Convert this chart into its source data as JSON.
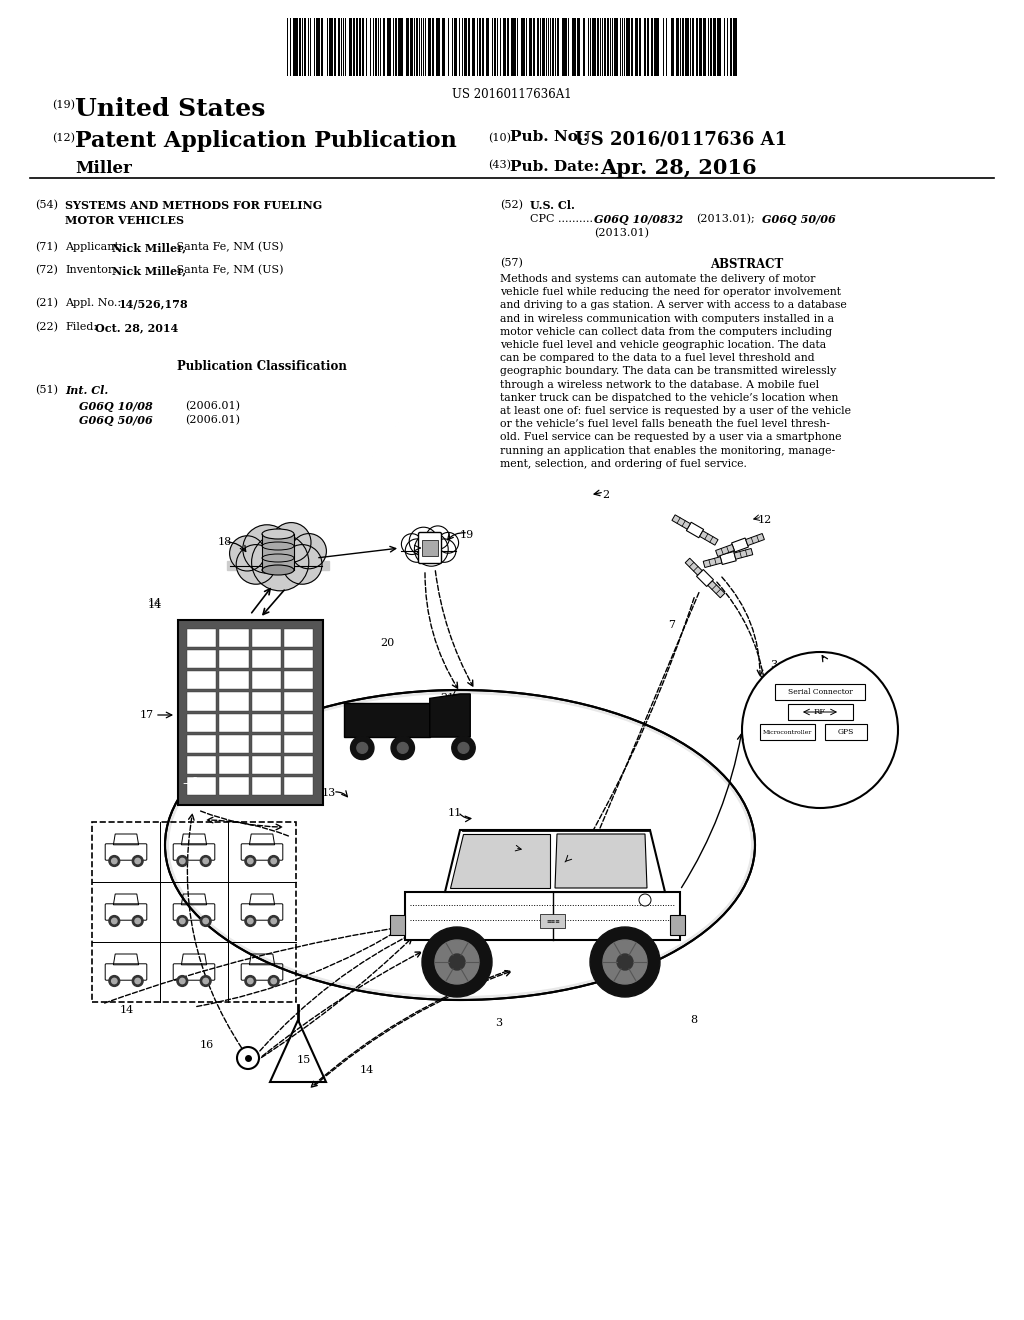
{
  "background_color": "#ffffff",
  "barcode_text": "US 20160117636A1",
  "pub_no": "US 2016/0117636 A1",
  "pub_date": "Apr. 28, 2016",
  "inventor_name": "Miller",
  "field54_line1": "SYSTEMS AND METHODS FOR FUELING",
  "field54_line2": "MOTOR VEHICLES",
  "field52_cpc_italic": "G06Q 10/0832",
  "field52_cpc_italic2": "G06Q 50/06",
  "field51_items": [
    [
      "G06Q 10/08",
      "(2006.01)"
    ],
    [
      "G06Q 50/06",
      "(2006.01)"
    ]
  ],
  "abstract_text": "Methods and systems can automate the delivery of motor\nvehicle fuel while reducing the need for operator involvement\nand driving to a gas station. A server with access to a database\nand in wireless communication with computers installed in a\nmotor vehicle can collect data from the computers including\nvehicle fuel level and vehicle geographic location. The data\ncan be compared to the data to a fuel level threshold and\ngeographic boundary. The data can be transmitted wirelessly\nthrough a wireless network to the database. A mobile fuel\ntanker truck can be dispatched to the vehicle’s location when\nat least one of: fuel service is requested by a user of the vehicle\nor the vehicle’s fuel level falls beneath the fuel level thresh-\nold. Fuel service can be requested by a user via a smartphone\nrunning an application that enables the monitoring, manage-\nment, selection, and ordering of fuel service."
}
